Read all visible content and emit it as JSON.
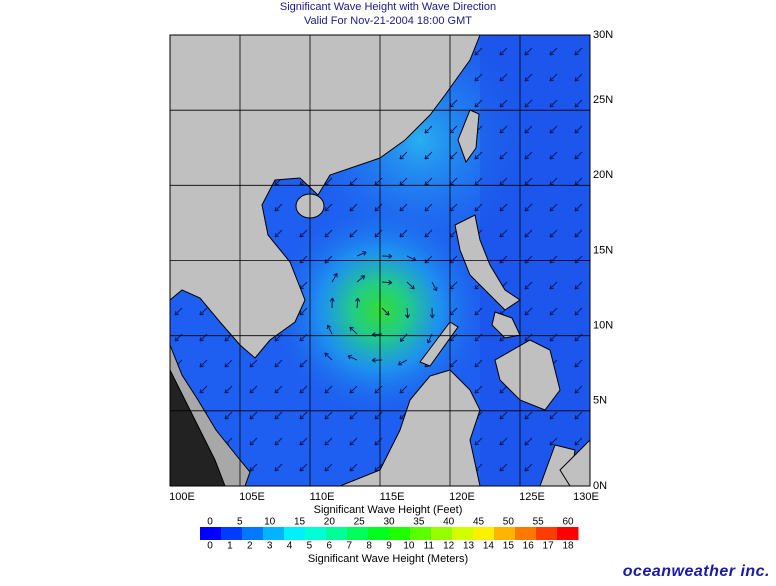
{
  "header": {
    "title": "Significant Wave Height with Wave Direction",
    "subtitle": "Valid For Nov-21-2004 18:00 GMT"
  },
  "map": {
    "lon_ticks": [
      {
        "value": 100,
        "label": "100E"
      },
      {
        "value": 105,
        "label": "105E"
      },
      {
        "value": 110,
        "label": "110E"
      },
      {
        "value": 115,
        "label": "115E"
      },
      {
        "value": 120,
        "label": "120E"
      },
      {
        "value": 125,
        "label": "125E"
      },
      {
        "value": 130,
        "label": "130E"
      }
    ],
    "lat_ticks": [
      {
        "value": 0,
        "label": "0N"
      },
      {
        "value": 5,
        "label": "5N"
      },
      {
        "value": 10,
        "label": "10N"
      },
      {
        "value": 15,
        "label": "15N"
      },
      {
        "value": 20,
        "label": "20N"
      },
      {
        "value": 25,
        "label": "25N"
      },
      {
        "value": 30,
        "label": "30N"
      }
    ]
  },
  "legend": {
    "feet_label": "Significant Wave Height (Feet)",
    "feet_ticks": [
      0,
      5,
      10,
      15,
      20,
      25,
      30,
      35,
      40,
      45,
      50,
      55,
      60
    ],
    "meters_label": "Significant Wave Height (Meters)",
    "meters_ticks": [
      0,
      1,
      2,
      3,
      4,
      5,
      6,
      7,
      8,
      9,
      10,
      11,
      12,
      13,
      14,
      15,
      16,
      17,
      18
    ]
  },
  "footer": {
    "brand": "oceanweather inc."
  }
}
